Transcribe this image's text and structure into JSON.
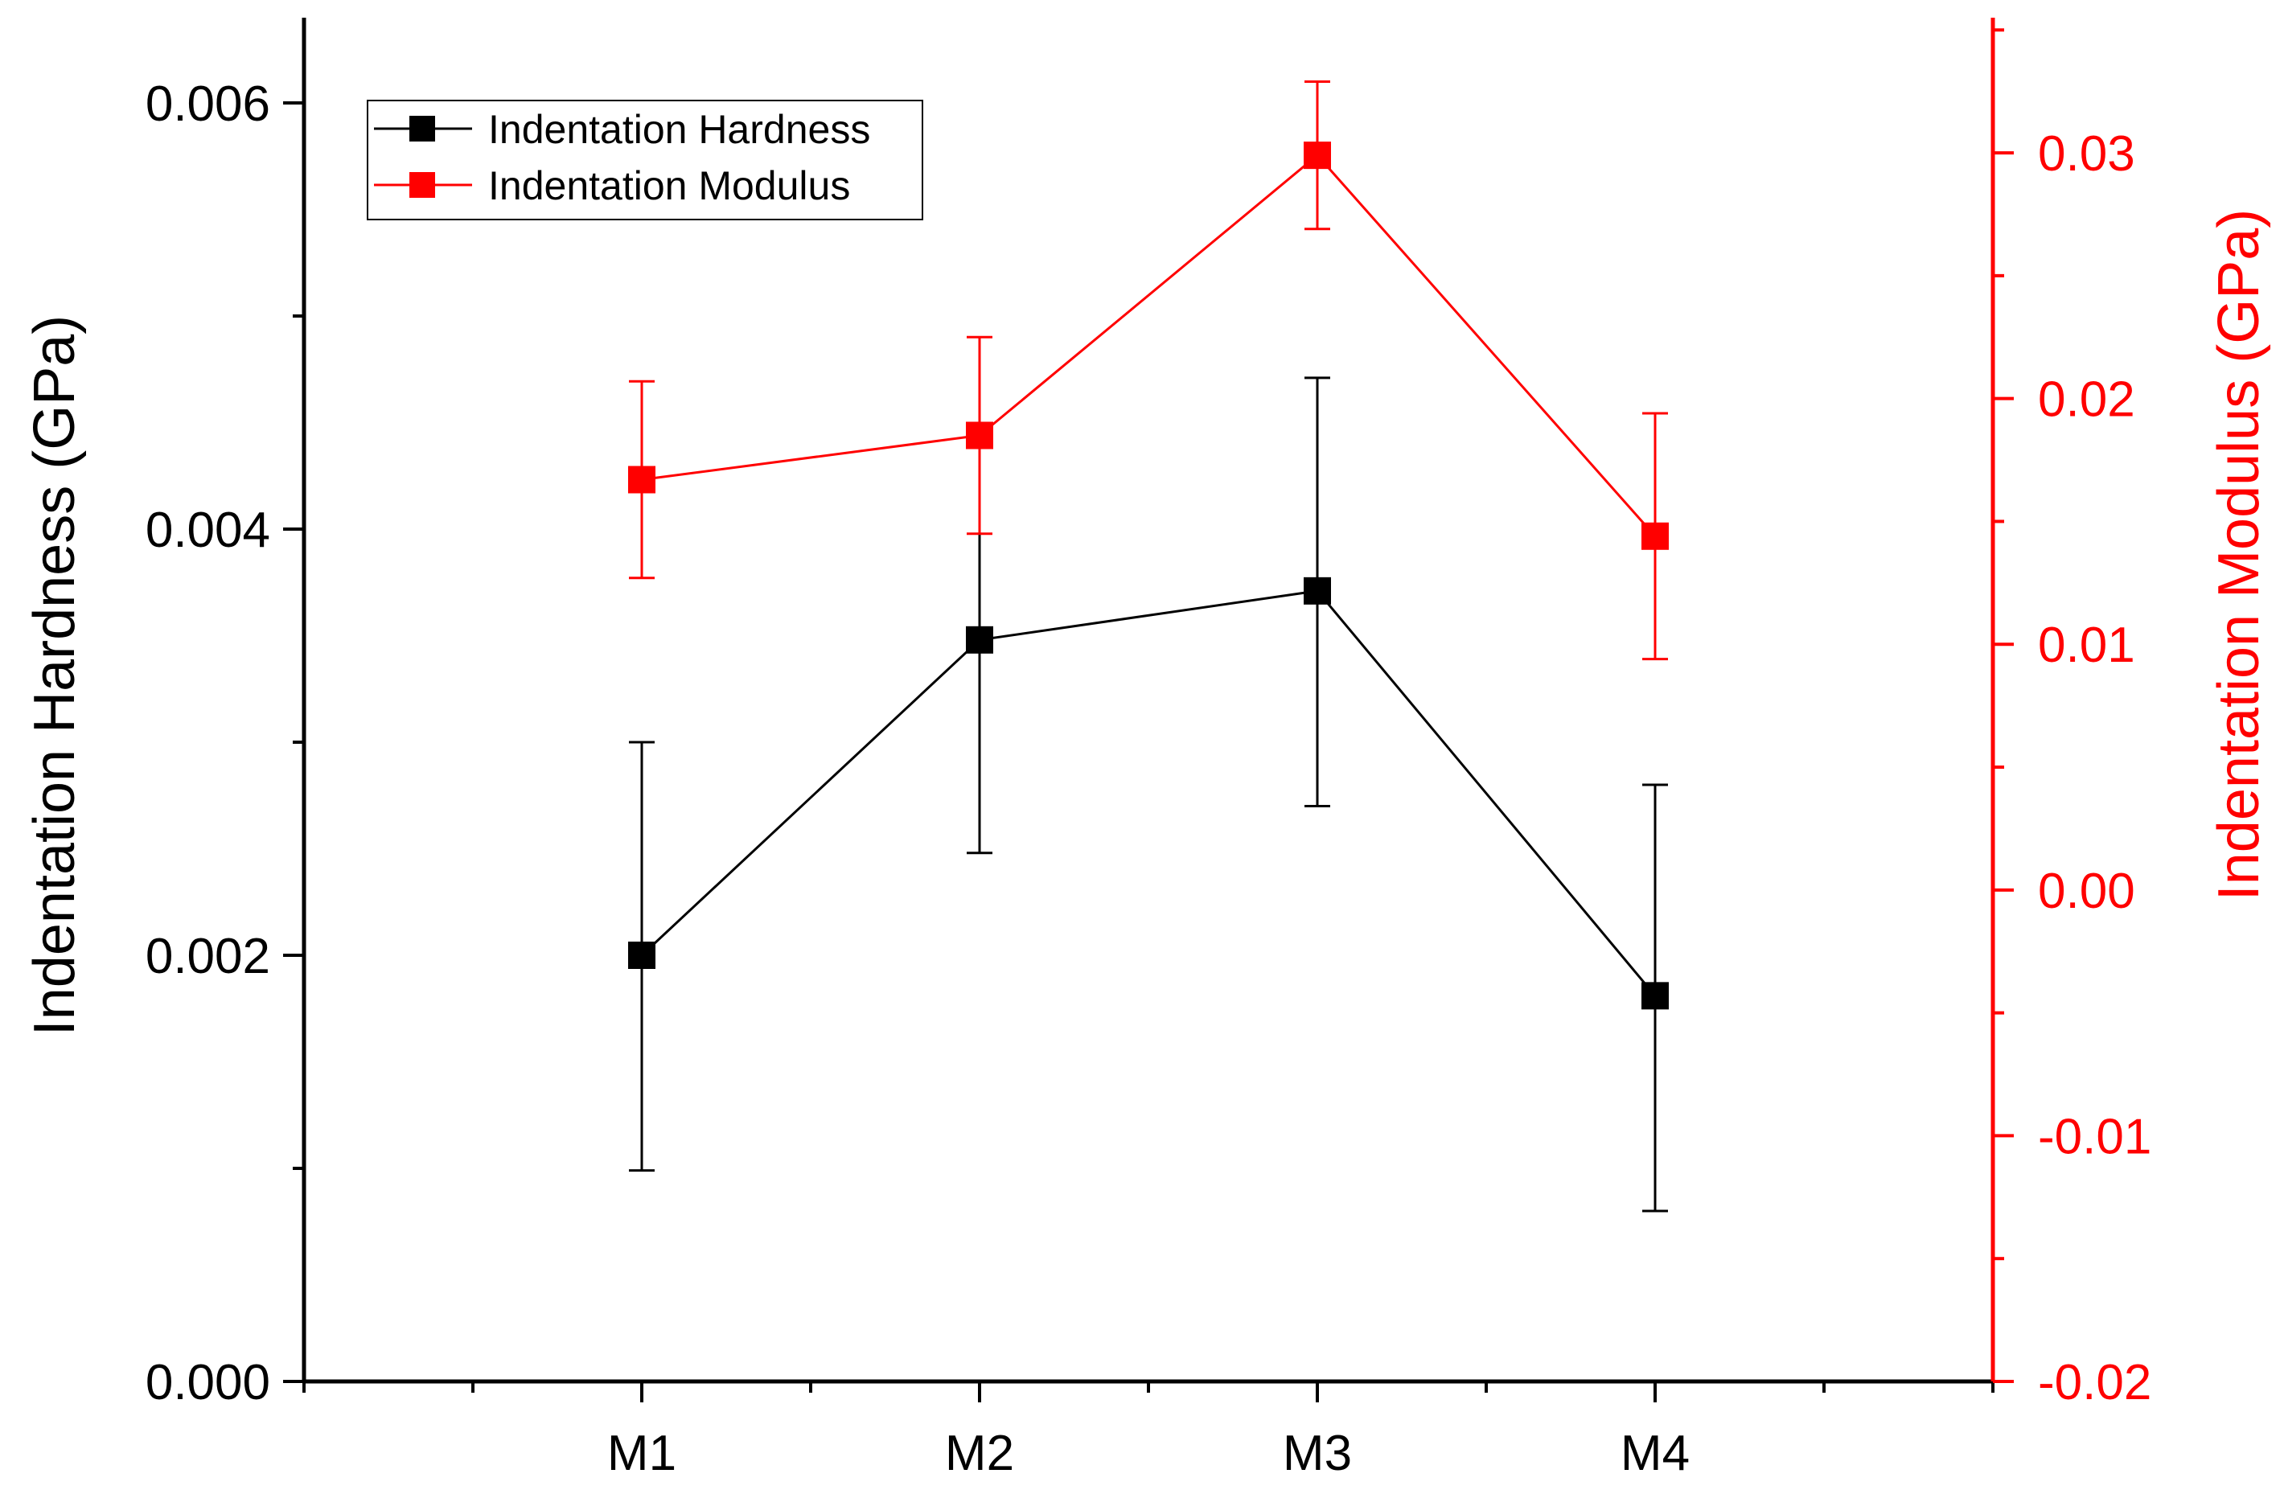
{
  "chart_data": {
    "type": "line",
    "categories": [
      "M1",
      "M2",
      "M3",
      "M4"
    ],
    "series": [
      {
        "name": "Indentation Hardness",
        "axis": "left",
        "color": "#000000",
        "values": [
          0.002,
          0.00348,
          0.00371,
          0.00181
        ],
        "error_low": [
          0.00099,
          0.00248,
          0.0027,
          0.0008
        ],
        "error_high": [
          0.003,
          0.00448,
          0.00471,
          0.0028
        ]
      },
      {
        "name": "Indentation Modulus",
        "axis": "right",
        "color": "#ff0000",
        "values": [
          0.0167,
          0.0185,
          0.0299,
          0.0144
        ],
        "error_low": [
          0.0127,
          0.0145,
          0.0269,
          0.0094
        ],
        "error_high": [
          0.0207,
          0.0225,
          0.0329,
          0.0194
        ]
      }
    ],
    "left_axis": {
      "label": "Indentation Hardness (GPa)",
      "ylim": [
        0.0,
        0.0064
      ],
      "major_ticks": [
        0.0,
        0.002,
        0.004,
        0.006
      ],
      "tick_labels": [
        "0.000",
        "0.002",
        "0.004",
        "0.006"
      ],
      "minor_ticks": [
        0.001,
        0.003,
        0.005
      ],
      "color": "#000000"
    },
    "right_axis": {
      "label": "Indentation Modulus (GPa)",
      "ylim": [
        -0.02,
        0.0355
      ],
      "major_ticks": [
        -0.02,
        -0.01,
        0.0,
        0.01,
        0.02,
        0.03
      ],
      "tick_labels": [
        "-0.02",
        "-0.01",
        "0.00",
        "0.01",
        "0.02",
        "0.03"
      ],
      "minor_ticks": [
        -0.015,
        -0.005,
        0.005,
        0.015,
        0.025,
        0.035
      ],
      "color": "#ff0000"
    },
    "xlabel": "",
    "xlim": [
      0,
      5
    ],
    "legend_position": "top-left",
    "grid": false
  }
}
